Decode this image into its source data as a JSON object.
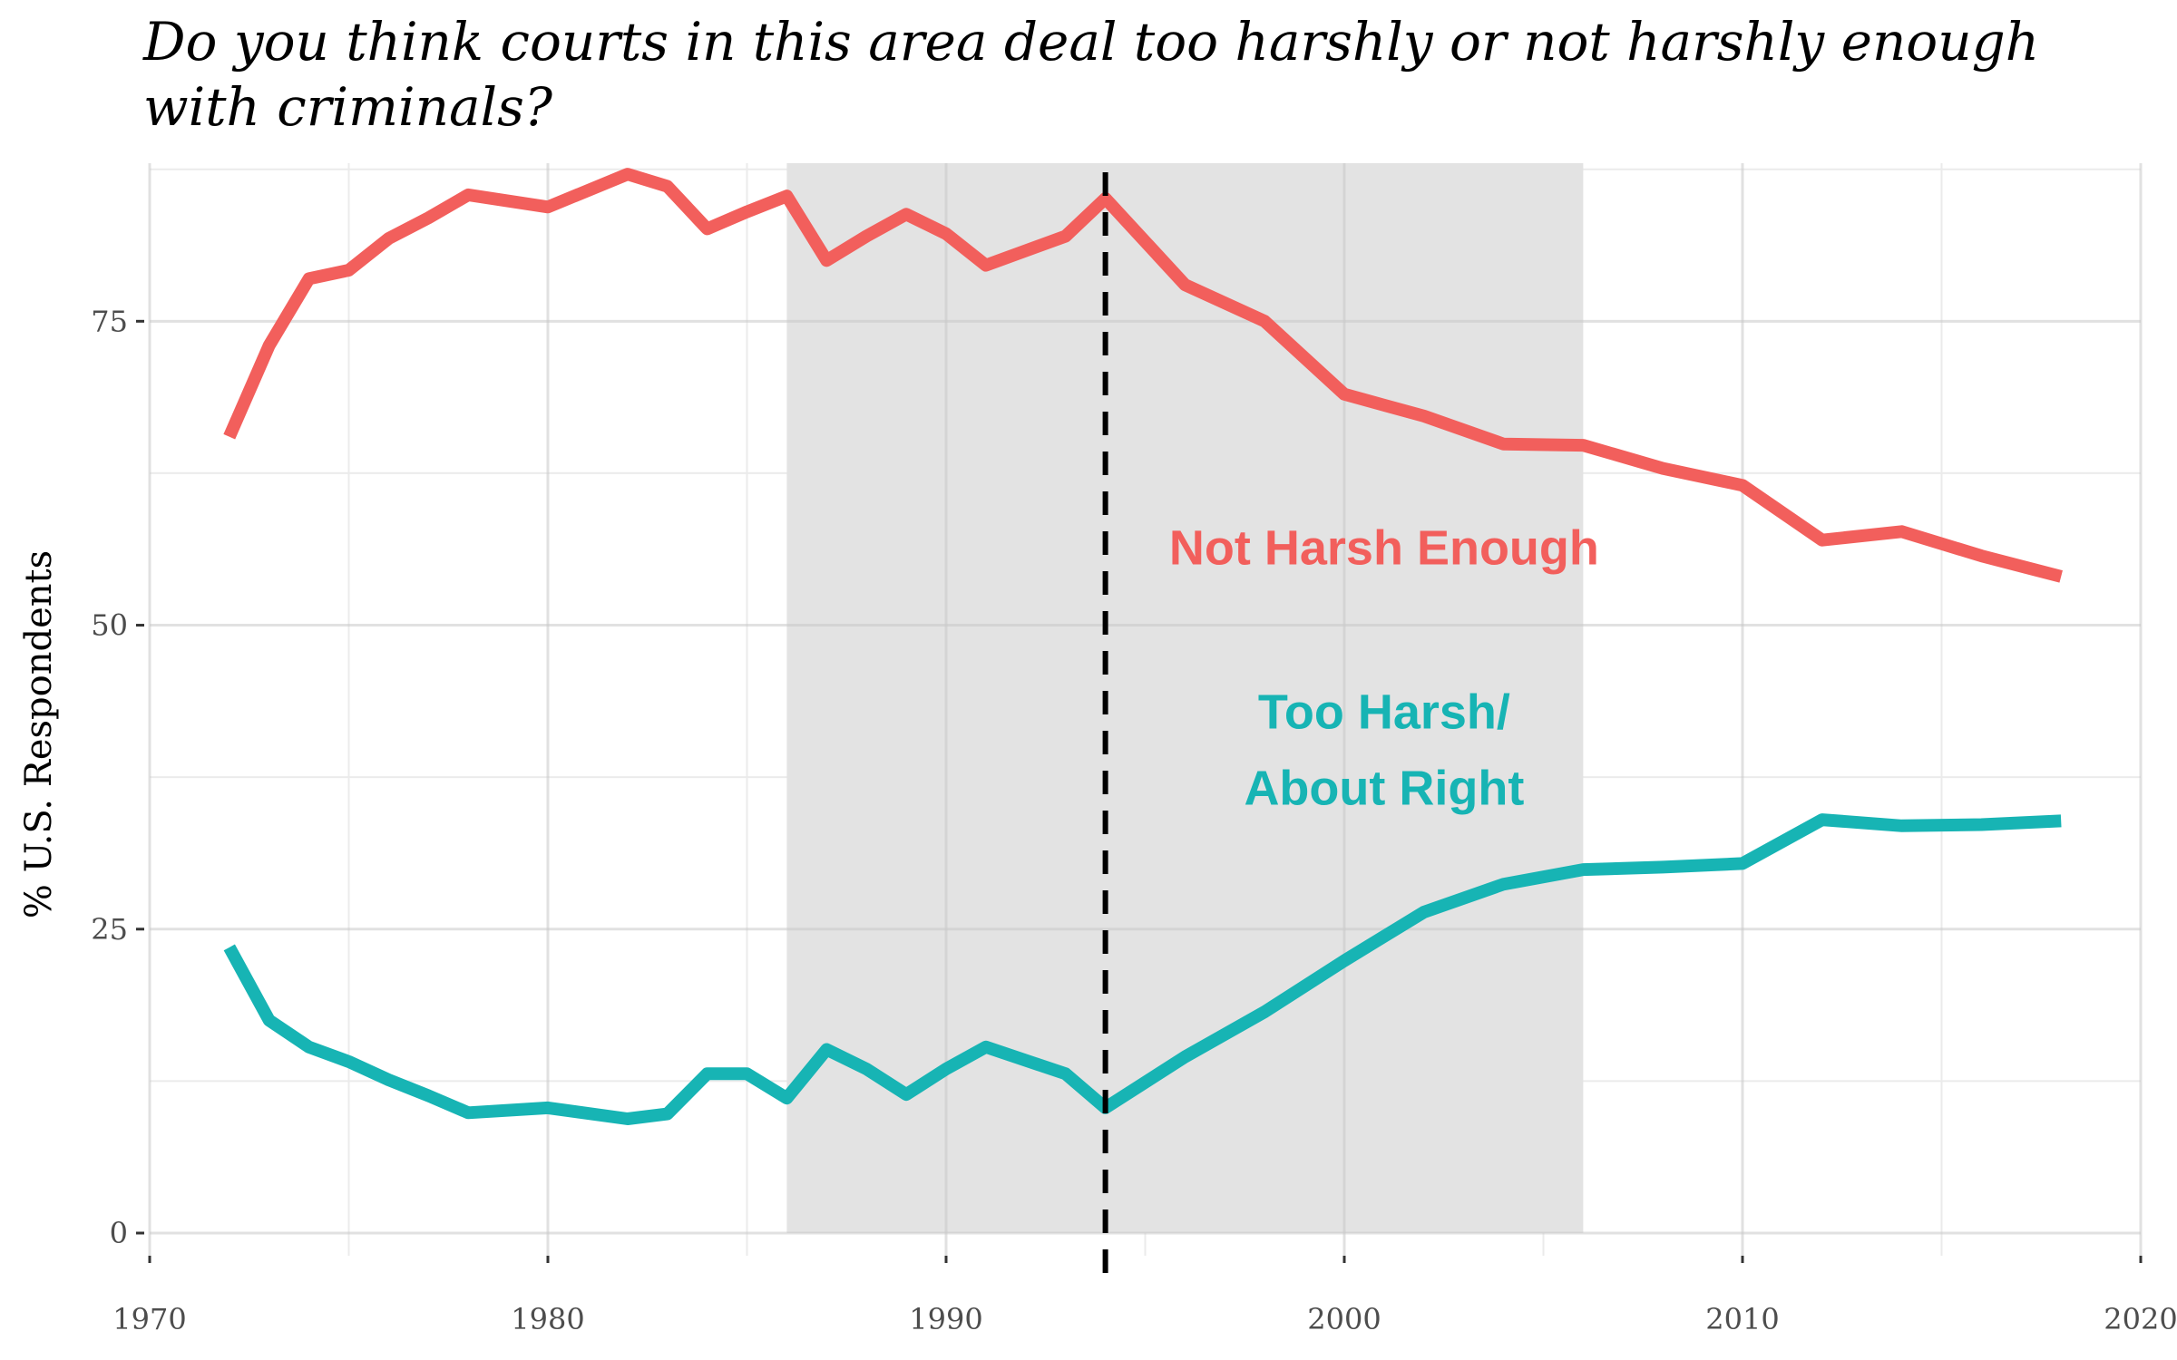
{
  "chart_data": {
    "type": "line",
    "title": "Do you think courts in this area deal too harshly or not harshly enough with criminals?",
    "xlabel": "",
    "ylabel": "% U.S. Respondents",
    "xlim": [
      1970,
      2020
    ],
    "ylim": [
      0,
      88
    ],
    "x_ticks": [
      1970,
      1980,
      1990,
      2000,
      2010,
      2020
    ],
    "y_ticks": [
      0,
      25,
      50,
      75
    ],
    "grid": true,
    "shaded_region": {
      "x_start": 1986,
      "x_end": 2006,
      "y_top": 88,
      "color": "#e3e3e3"
    },
    "vertical_line": {
      "x": 1994,
      "style": "dashed",
      "color": "#000000"
    },
    "series": [
      {
        "name": "Not Harsh Enough",
        "color": "#f25f5c",
        "label_lines": [
          "Not Harsh Enough"
        ],
        "label_anchor": {
          "x": 2001,
          "y": 55
        },
        "x": [
          1972,
          1973,
          1974,
          1975,
          1976,
          1977,
          1978,
          1980,
          1982,
          1983,
          1984,
          1985,
          1986,
          1987,
          1988,
          1989,
          1990,
          1991,
          1993,
          1994,
          1996,
          1998,
          2000,
          2002,
          2004,
          2006,
          2008,
          2010,
          2012,
          2014,
          2016,
          2018
        ],
        "values": [
          65.5,
          73,
          78.5,
          79.2,
          81.8,
          83.5,
          85.4,
          84.4,
          87.1,
          86.1,
          82.6,
          84,
          85.3,
          80,
          82,
          83.8,
          82.2,
          79.6,
          82,
          85.1,
          78,
          75,
          69,
          67.2,
          64.9,
          64.8,
          62.9,
          61.5,
          57,
          57.7,
          55.7,
          54
        ]
      },
      {
        "name": "Too Harsh/ About Right",
        "color": "#17b4b4",
        "label_lines": [
          "Too Harsh/",
          "About Right"
        ],
        "label_anchor": {
          "x": 2001,
          "y": 41.5
        },
        "x": [
          1972,
          1973,
          1974,
          1975,
          1976,
          1977,
          1978,
          1980,
          1982,
          1983,
          1984,
          1985,
          1986,
          1987,
          1988,
          1989,
          1990,
          1991,
          1993,
          1994,
          1996,
          1998,
          2000,
          2002,
          2004,
          2006,
          2008,
          2010,
          2012,
          2014,
          2016,
          2018
        ],
        "values": [
          23.5,
          17.5,
          15.3,
          14.1,
          12.6,
          11.3,
          9.9,
          10.3,
          9.4,
          9.8,
          13.1,
          13.1,
          11.1,
          15.1,
          13.5,
          11.4,
          13.5,
          15.3,
          13.1,
          10.3,
          14.5,
          18.2,
          22.4,
          26.4,
          28.7,
          29.9,
          30.1,
          30.4,
          34,
          33.5,
          33.6,
          33.9
        ]
      }
    ]
  }
}
